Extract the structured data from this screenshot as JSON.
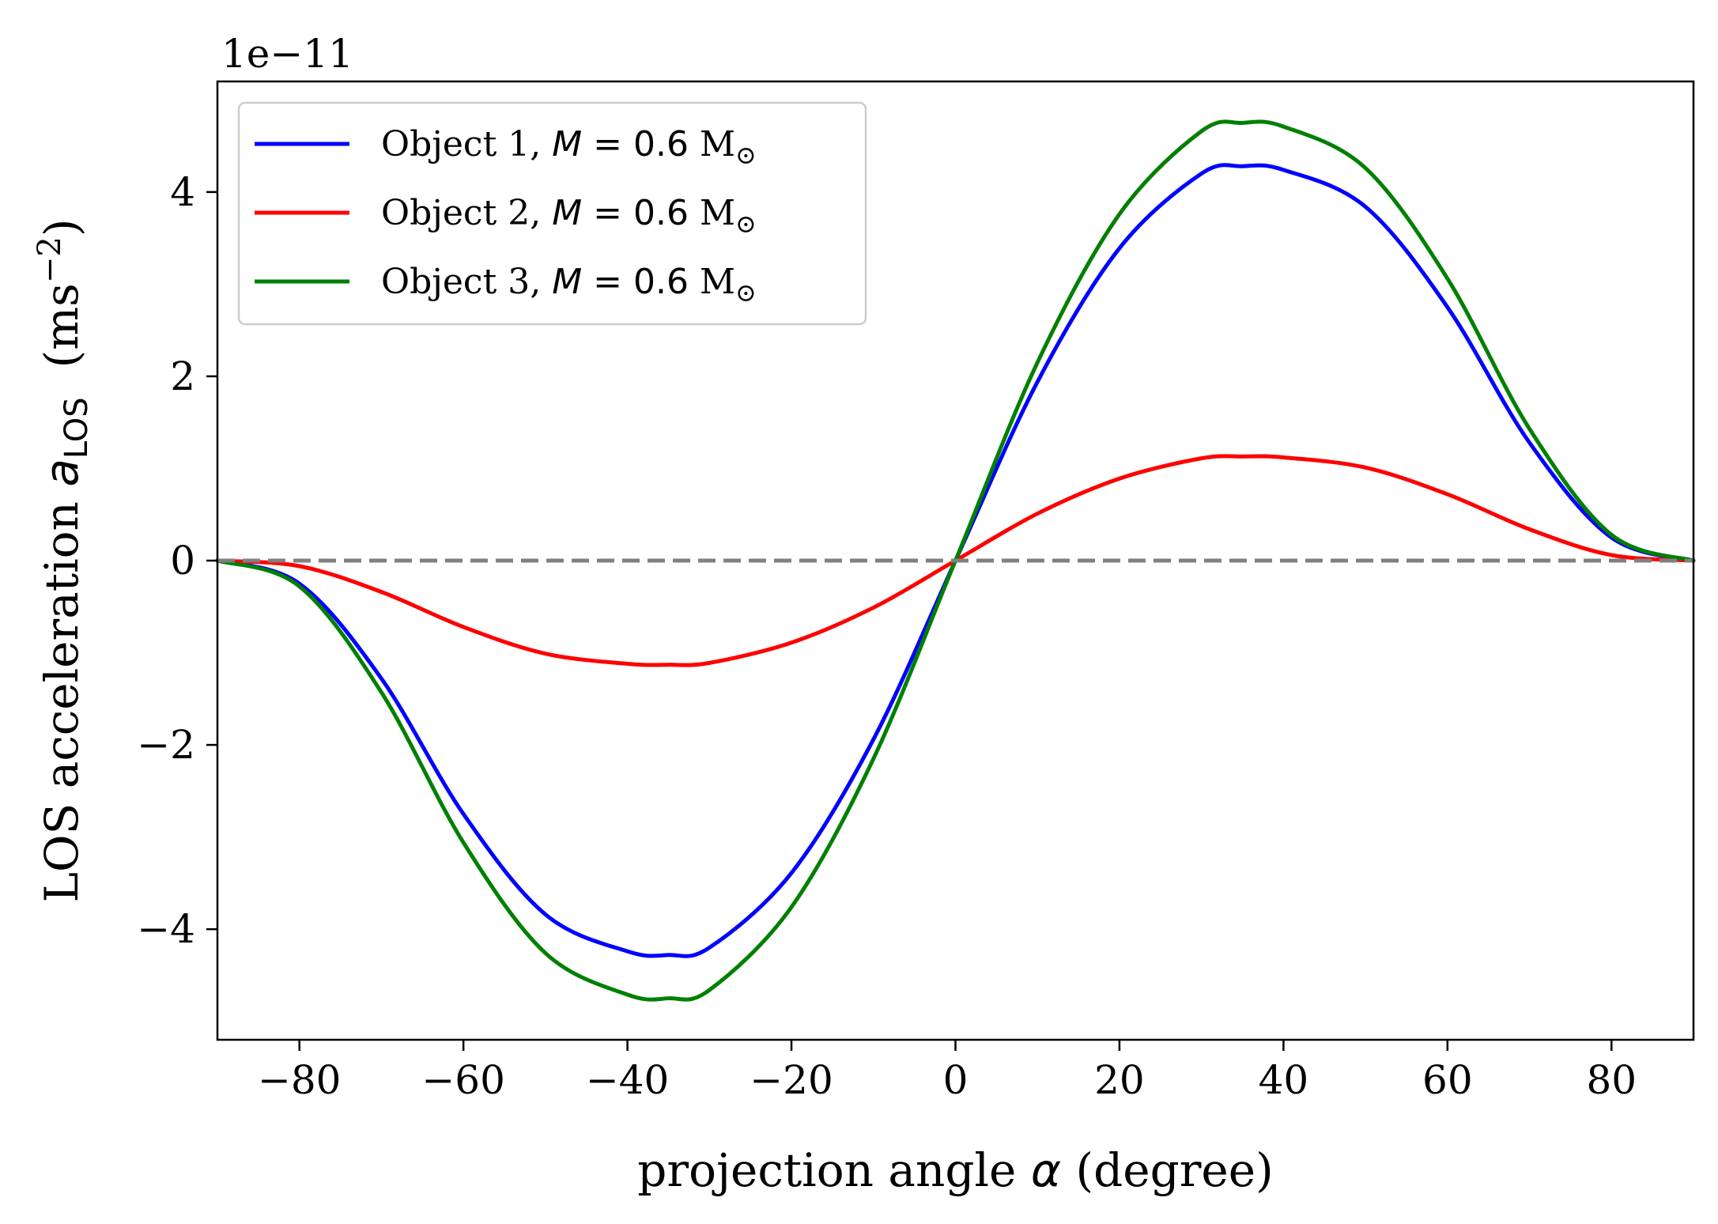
{
  "chart_data": {
    "type": "line",
    "title": "",
    "offset_text": "1e−11",
    "xlabel": {
      "text": "projection angle ",
      "symbol": "α",
      "suffix": " (degree)"
    },
    "ylabel": {
      "text": "LOS acceleration ",
      "symbol": "a",
      "subscript": "LOS",
      "units_open": "  (ms",
      "units_sup": "−2",
      "units_close": ")"
    },
    "xlim": [
      -90,
      90
    ],
    "ylim": [
      -5.2,
      5.2
    ],
    "y_scale_factor": 1e-11,
    "xticks": [
      -80,
      -60,
      -40,
      -20,
      0,
      20,
      40,
      60,
      80
    ],
    "xtick_labels": [
      "−80",
      "−60",
      "−40",
      "−20",
      "0",
      "20",
      "40",
      "60",
      "80"
    ],
    "yticks": [
      -4,
      -2,
      0,
      2,
      4
    ],
    "ytick_labels": [
      "−4",
      "−2",
      "0",
      "2",
      "4"
    ],
    "x": [
      -90,
      -80,
      -70,
      -60,
      -50,
      -40,
      -35,
      -30,
      -20,
      -10,
      0,
      10,
      20,
      30,
      35,
      40,
      50,
      60,
      70,
      80,
      90
    ],
    "series": [
      {
        "name": "Object 1, ",
        "name_math": "M",
        "name_math_rest": " = 0.6 ",
        "name_unit": "M",
        "name_unit_sub": "⊙",
        "color": "#0000ff",
        "values": [
          0,
          -0.25,
          -1.28,
          -2.75,
          -3.84,
          -4.24,
          -4.28,
          -4.2,
          -3.39,
          -1.94,
          0,
          1.94,
          3.39,
          4.2,
          4.28,
          4.24,
          3.84,
          2.75,
          1.28,
          0.25,
          0
        ]
      },
      {
        "name": "Object 2, ",
        "name_math": "M",
        "name_math_rest": " = 0.6 ",
        "name_unit": "M",
        "name_unit_sub": "⊙",
        "color": "#ff0000",
        "values": [
          0,
          -0.06,
          -0.34,
          -0.72,
          -1.01,
          -1.12,
          -1.13,
          -1.11,
          -0.89,
          -0.51,
          0,
          0.51,
          0.89,
          1.11,
          1.13,
          1.12,
          1.01,
          0.72,
          0.34,
          0.06,
          0
        ]
      },
      {
        "name": "Object 3, ",
        "name_math": "M",
        "name_math_rest": " = 0.6 ",
        "name_unit": "M",
        "name_unit_sub": "⊙",
        "color": "#008000",
        "values": [
          0,
          -0.28,
          -1.43,
          -3.06,
          -4.26,
          -4.71,
          -4.75,
          -4.66,
          -3.76,
          -2.15,
          0,
          2.15,
          3.76,
          4.66,
          4.75,
          4.71,
          4.26,
          3.06,
          1.43,
          0.28,
          0
        ]
      }
    ],
    "reference_line": {
      "y": 0,
      "color": "#808080",
      "style": "dashed"
    },
    "legend_position": "upper-left",
    "grid": false
  }
}
